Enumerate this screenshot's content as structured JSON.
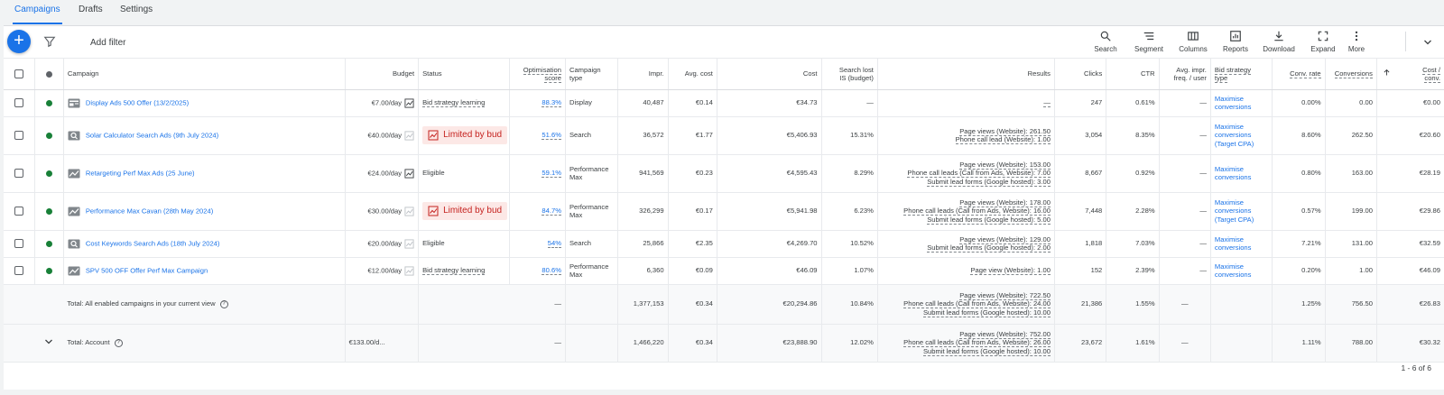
{
  "tabs": [
    {
      "label": "Campaigns",
      "active": true
    },
    {
      "label": "Drafts",
      "active": false
    },
    {
      "label": "Settings",
      "active": false
    }
  ],
  "toolbar": {
    "add_filter": "Add filter",
    "tools": [
      {
        "label": "Search",
        "icon": "search-icon"
      },
      {
        "label": "Segment",
        "icon": "segment-icon"
      },
      {
        "label": "Columns",
        "icon": "columns-icon"
      },
      {
        "label": "Reports",
        "icon": "reports-icon"
      },
      {
        "label": "Download",
        "icon": "download-icon"
      },
      {
        "label": "Expand",
        "icon": "expand-icon"
      },
      {
        "label": "More",
        "icon": "more-vert-icon"
      }
    ]
  },
  "colors": {
    "accent": "#1a73e8",
    "enabled": "#188038",
    "limited_bg": "#fce8e6",
    "limited_text": "#c5221f"
  },
  "columns": {
    "campaign": "Campaign",
    "budget": "Budget",
    "status": "Status",
    "opt_score_1": "Optimisation",
    "opt_score_2": "score",
    "campaign_type_1": "Campaign",
    "campaign_type_2": "type",
    "impr": "Impr.",
    "avg_cost": "Avg. cost",
    "cost": "Cost",
    "search_lost_1": "Search lost",
    "search_lost_2": "IS (budget)",
    "results": "Results",
    "clicks": "Clicks",
    "ctr": "CTR",
    "avg_freq_1": "Avg. impr.",
    "avg_freq_2": "freq. / user",
    "bid_strategy_1": "Bid strategy",
    "bid_strategy_2": "type",
    "conv_rate": "Conv. rate",
    "conversions": "Conversions",
    "cost_conv_1": "Cost /",
    "cost_conv_2": "conv."
  },
  "rows": [
    {
      "name": "Display Ads 500 Offer (13/2/2025)",
      "type_icon": "display-icon",
      "budget": "€7.00/day",
      "status": "Bid strategy learning",
      "status_kind": "learning",
      "opt": "88.3%",
      "ctype1": "Display",
      "ctype2": "",
      "impr": "40,487",
      "avg_cost": "€0.14",
      "cost": "€34.73",
      "lost": "—",
      "results": [
        "—"
      ],
      "clicks": "247",
      "ctr": "0.61%",
      "freq": "—",
      "bid1": "Maximise",
      "bid2": "conversions",
      "bid3": "",
      "conv_rate": "0.00%",
      "conversions": "0.00",
      "cost_conv": "€0.00"
    },
    {
      "name": "Solar Calculator Search Ads (9th July 2024)",
      "type_icon": "search-campaign-icon",
      "budget": "€40.00/day",
      "status": "Limited by bud",
      "status_kind": "limited",
      "opt": "51.6%",
      "ctype1": "Search",
      "ctype2": "",
      "impr": "36,572",
      "avg_cost": "€1.77",
      "cost": "€5,406.93",
      "lost": "15.31%",
      "results": [
        "Page views (Website): 261.50",
        "Phone call lead (Website): 1.00"
      ],
      "clicks": "3,054",
      "ctr": "8.35%",
      "freq": "—",
      "bid1": "Maximise",
      "bid2": "conversions",
      "bid3": "(Target CPA)",
      "conv_rate": "8.60%",
      "conversions": "262.50",
      "cost_conv": "€20.60"
    },
    {
      "name": "Retargeting Perf Max Ads (25 June)",
      "type_icon": "pmax-icon",
      "budget": "€24.00/day",
      "status": "Eligible",
      "status_kind": "eligible",
      "opt": "59.1%",
      "ctype1": "Performance",
      "ctype2": "Max",
      "impr": "941,569",
      "avg_cost": "€0.23",
      "cost": "€4,595.43",
      "lost": "8.29%",
      "results": [
        "Page views (Website): 153.00",
        "Phone call leads (Call from Ads, Website): 7.00",
        "Submit lead forms (Google hosted): 3.00"
      ],
      "clicks": "8,667",
      "ctr": "0.92%",
      "freq": "—",
      "bid1": "Maximise",
      "bid2": "conversions",
      "bid3": "",
      "conv_rate": "0.80%",
      "conversions": "163.00",
      "cost_conv": "€28.19"
    },
    {
      "name": "Performance Max Cavan (28th May 2024)",
      "type_icon": "pmax-icon",
      "budget": "€30.00/day",
      "status": "Limited by bud",
      "status_kind": "limited",
      "opt": "84.7%",
      "ctype1": "Performance",
      "ctype2": "Max",
      "impr": "326,299",
      "avg_cost": "€0.17",
      "cost": "€5,941.98",
      "lost": "6.23%",
      "results": [
        "Page views (Website): 178.00",
        "Phone call leads (Call from Ads, Website): 16.00",
        "Submit lead forms (Google hosted): 5.00"
      ],
      "clicks": "7,448",
      "ctr": "2.28%",
      "freq": "—",
      "bid1": "Maximise",
      "bid2": "conversions",
      "bid3": "(Target CPA)",
      "conv_rate": "0.57%",
      "conversions": "199.00",
      "cost_conv": "€29.86"
    },
    {
      "name": "Cost Keywords Search Ads (18th July 2024)",
      "type_icon": "search-campaign-icon",
      "budget": "€20.00/day",
      "status": "Eligible",
      "status_kind": "eligible",
      "opt": "54%",
      "ctype1": "Search",
      "ctype2": "",
      "impr": "25,866",
      "avg_cost": "€2.35",
      "cost": "€4,269.70",
      "lost": "10.52%",
      "results": [
        "Page views (Website): 129.00",
        "Submit lead forms (Google hosted): 2.00"
      ],
      "clicks": "1,818",
      "ctr": "7.03%",
      "freq": "—",
      "bid1": "Maximise",
      "bid2": "conversions",
      "bid3": "",
      "conv_rate": "7.21%",
      "conversions": "131.00",
      "cost_conv": "€32.59"
    },
    {
      "name": "SPV 500 OFF Offer Perf Max Campaign",
      "type_icon": "pmax-icon",
      "budget": "€12.00/day",
      "status": "Bid strategy learning",
      "status_kind": "learning",
      "opt": "80.6%",
      "ctype1": "Performance",
      "ctype2": "Max",
      "impr": "6,360",
      "avg_cost": "€0.09",
      "cost": "€46.09",
      "lost": "1.07%",
      "results": [
        "Page view (Website): 1.00"
      ],
      "clicks": "152",
      "ctr": "2.39%",
      "freq": "—",
      "bid1": "Maximise",
      "bid2": "conversions",
      "bid3": "",
      "conv_rate": "0.20%",
      "conversions": "1.00",
      "cost_conv": "€46.09"
    }
  ],
  "totals": [
    {
      "label": "Total: All enabled campaigns in your current view",
      "budget": "",
      "opt": "—",
      "impr": "1,377,153",
      "avg_cost": "€0.34",
      "cost": "€20,294.86",
      "lost": "10.84%",
      "results": [
        "Page views (Website): 722.50",
        "Phone call leads (Call from Ads, Website): 24.00",
        "Submit lead forms (Google hosted): 10.00"
      ],
      "clicks": "21,386",
      "ctr": "1.55%",
      "freq": "—",
      "conv_rate": "1.25%",
      "conversions": "756.50",
      "cost_conv": "€26.83"
    },
    {
      "label": "Total: Account",
      "budget": "€133.00/d...",
      "opt": "—",
      "impr": "1,466,220",
      "avg_cost": "€0.34",
      "cost": "€23,888.90",
      "lost": "12.02%",
      "results": [
        "Page views (Website): 752.00",
        "Phone call leads (Call from Ads, Website): 26.00",
        "Submit lead forms (Google hosted): 10.00"
      ],
      "clicks": "23,672",
      "ctr": "1.61%",
      "freq": "—",
      "conv_rate": "1.11%",
      "conversions": "788.00",
      "cost_conv": "€30.32"
    }
  ],
  "pager": "1 - 6 of 6"
}
